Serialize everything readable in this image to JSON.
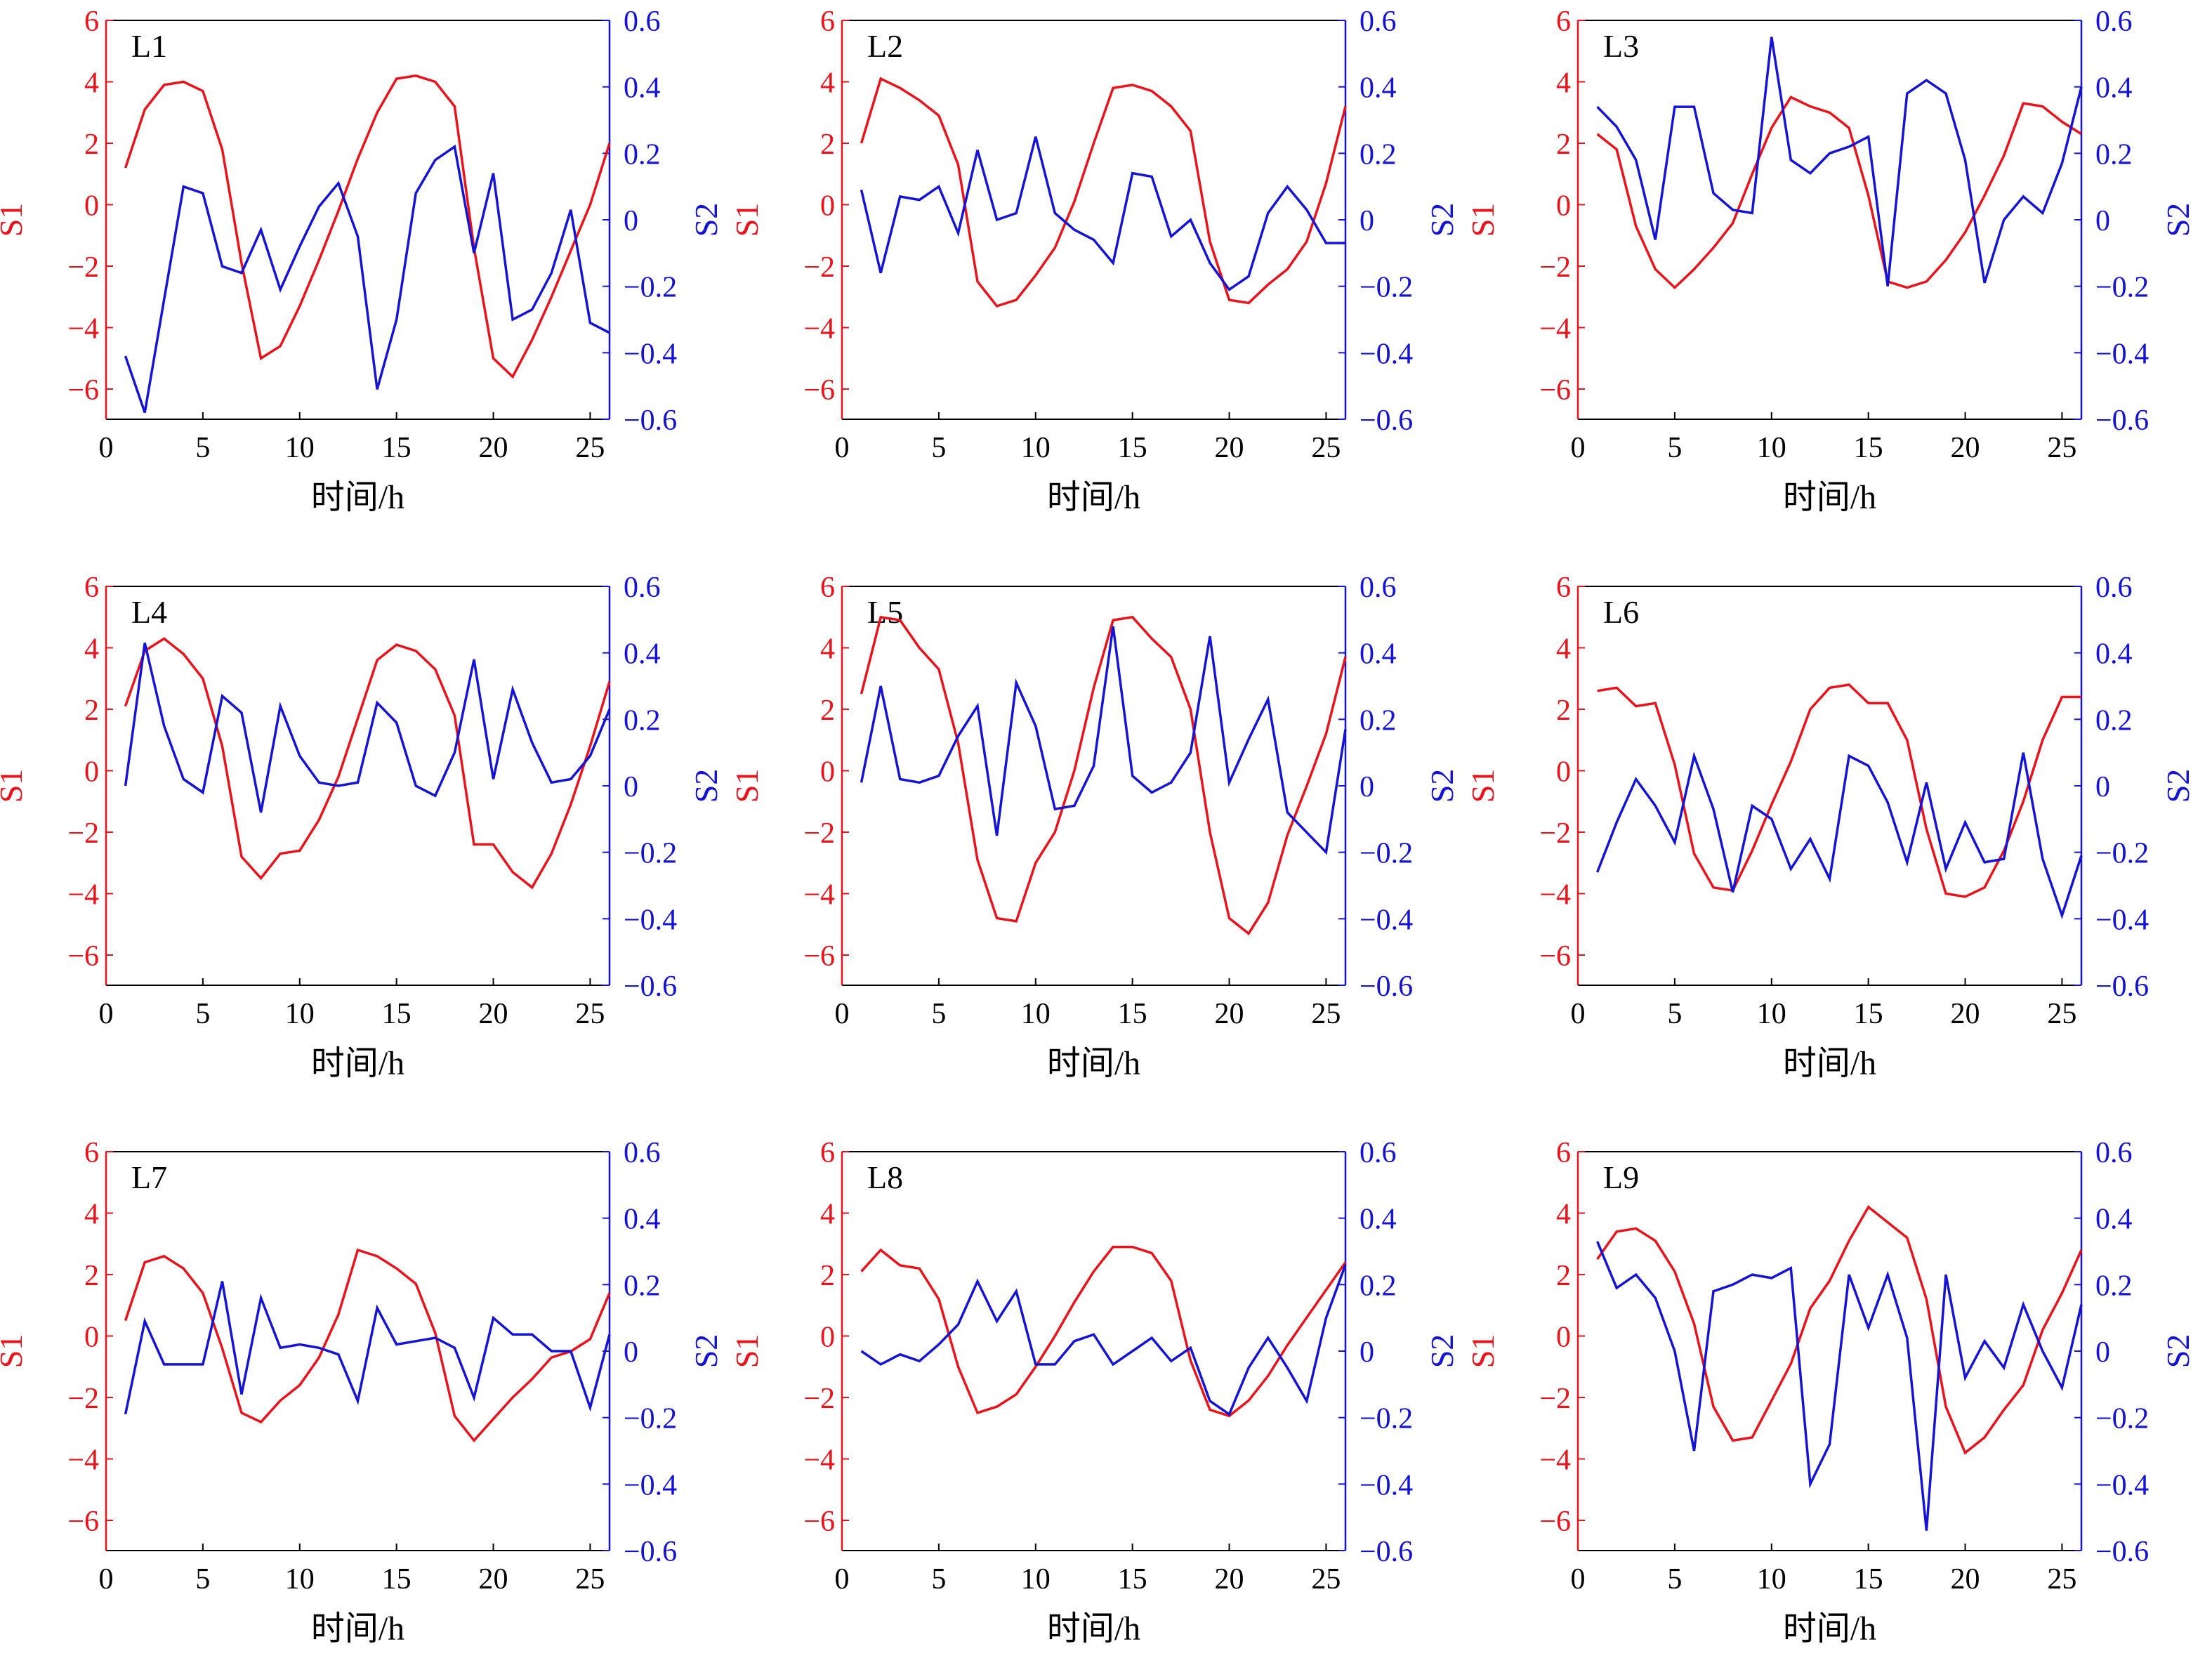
{
  "colors": {
    "s1": "#e8141c",
    "s2": "#1414d2",
    "axis": "#000000"
  },
  "chart_data": [
    {
      "type": "line",
      "title": "L1",
      "xlabel": "时间/h",
      "ylabel": "S1",
      "y2label": "S2",
      "xlim": [
        0,
        26
      ],
      "ylim": [
        -7,
        6
      ],
      "y2lim": [
        -0.6,
        0.6
      ],
      "xticks": [
        "0",
        "5",
        "10",
        "15",
        "20",
        "25"
      ],
      "yticks": [
        "6",
        "4",
        "2",
        "0",
        "−2",
        "−4",
        "−6"
      ],
      "y2ticks": [
        "0.6",
        "0.4",
        "0.2",
        "0",
        "−0.2",
        "−0.4",
        "−0.6"
      ],
      "x": [
        1,
        2,
        3,
        4,
        5,
        6,
        7,
        8,
        9,
        10,
        11,
        12,
        13,
        14,
        15,
        16,
        17,
        18,
        19,
        20,
        21,
        22,
        23,
        24,
        25,
        26
      ],
      "series": [
        {
          "name": "S1",
          "axis": "left",
          "values": [
            1.2,
            3.1,
            3.9,
            4.0,
            3.7,
            1.8,
            -1.9,
            -5.0,
            -4.6,
            -3.3,
            -1.8,
            -0.2,
            1.5,
            3.0,
            4.1,
            4.2,
            4.0,
            3.2,
            -1.4,
            -5.0,
            -5.6,
            -4.4,
            -3.0,
            -1.5,
            0.0,
            2.0
          ]
        },
        {
          "name": "S2",
          "axis": "right",
          "values": [
            -0.41,
            -0.58,
            -0.24,
            0.1,
            0.08,
            -0.14,
            -0.16,
            -0.03,
            -0.21,
            -0.08,
            0.04,
            0.11,
            -0.05,
            -0.51,
            -0.3,
            0.08,
            0.18,
            0.22,
            -0.1,
            0.14,
            -0.3,
            -0.27,
            -0.16,
            0.03,
            -0.31,
            -0.34
          ]
        }
      ]
    },
    {
      "type": "line",
      "title": "L2",
      "xlabel": "时间/h",
      "ylabel": "S1",
      "y2label": "S2",
      "xlim": [
        0,
        26
      ],
      "ylim": [
        -7,
        6
      ],
      "y2lim": [
        -0.6,
        0.6
      ],
      "xticks": [
        "0",
        "5",
        "10",
        "15",
        "20",
        "25"
      ],
      "yticks": [
        "6",
        "4",
        "2",
        "0",
        "−2",
        "−4",
        "−6"
      ],
      "y2ticks": [
        "0.6",
        "0.4",
        "0.2",
        "0",
        "−0.2",
        "−0.4",
        "−0.6"
      ],
      "x": [
        1,
        2,
        3,
        4,
        5,
        6,
        7,
        8,
        9,
        10,
        11,
        12,
        13,
        14,
        15,
        16,
        17,
        18,
        19,
        20,
        21,
        22,
        23,
        24,
        25,
        26
      ],
      "series": [
        {
          "name": "S1",
          "axis": "left",
          "values": [
            2.0,
            4.1,
            3.8,
            3.4,
            2.9,
            1.3,
            -2.5,
            -3.3,
            -3.1,
            -2.3,
            -1.4,
            0.1,
            2.0,
            3.8,
            3.9,
            3.7,
            3.2,
            2.4,
            -1.2,
            -3.1,
            -3.2,
            -2.6,
            -2.1,
            -1.2,
            0.7,
            3.2
          ]
        },
        {
          "name": "S2",
          "axis": "right",
          "values": [
            0.09,
            -0.16,
            0.07,
            0.06,
            0.1,
            -0.04,
            0.21,
            0.0,
            0.02,
            0.25,
            0.02,
            -0.03,
            -0.06,
            -0.13,
            0.14,
            0.13,
            -0.05,
            0.0,
            -0.13,
            -0.21,
            -0.17,
            0.02,
            0.1,
            0.03,
            -0.07,
            -0.07
          ]
        }
      ]
    },
    {
      "type": "line",
      "title": "L3",
      "xlabel": "时间/h",
      "ylabel": "S1",
      "y2label": "S2",
      "xlim": [
        0,
        26
      ],
      "ylim": [
        -7,
        6
      ],
      "y2lim": [
        -0.6,
        0.6
      ],
      "xticks": [
        "0",
        "5",
        "10",
        "15",
        "20",
        "25"
      ],
      "yticks": [
        "6",
        "4",
        "2",
        "0",
        "−2",
        "−4",
        "−6"
      ],
      "y2ticks": [
        "0.6",
        "0.4",
        "0.2",
        "0",
        "−0.2",
        "−0.4",
        "−0.6"
      ],
      "x": [
        1,
        2,
        3,
        4,
        5,
        6,
        7,
        8,
        9,
        10,
        11,
        12,
        13,
        14,
        15,
        16,
        17,
        18,
        19,
        20,
        21,
        22,
        23,
        24,
        25,
        26
      ],
      "series": [
        {
          "name": "S1",
          "axis": "left",
          "values": [
            2.3,
            1.8,
            -0.7,
            -2.1,
            -2.7,
            -2.1,
            -1.4,
            -0.6,
            1.0,
            2.5,
            3.5,
            3.2,
            3.0,
            2.5,
            0.3,
            -2.5,
            -2.7,
            -2.5,
            -1.8,
            -0.9,
            0.3,
            1.6,
            3.3,
            3.2,
            2.7,
            2.3
          ]
        },
        {
          "name": "S2",
          "axis": "right",
          "values": [
            0.34,
            0.28,
            0.18,
            -0.06,
            0.34,
            0.34,
            0.08,
            0.03,
            0.02,
            0.55,
            0.18,
            0.14,
            0.2,
            0.22,
            0.25,
            -0.2,
            0.38,
            0.42,
            0.38,
            0.18,
            -0.19,
            0.0,
            0.07,
            0.02,
            0.17,
            0.4
          ]
        }
      ]
    },
    {
      "type": "line",
      "title": "L4",
      "xlabel": "时间/h",
      "ylabel": "S1",
      "y2label": "S2",
      "xlim": [
        0,
        26
      ],
      "ylim": [
        -7,
        6
      ],
      "y2lim": [
        -0.6,
        0.6
      ],
      "xticks": [
        "0",
        "5",
        "10",
        "15",
        "20",
        "25"
      ],
      "yticks": [
        "6",
        "4",
        "2",
        "0",
        "−2",
        "−4",
        "−6"
      ],
      "y2ticks": [
        "0.6",
        "0.4",
        "0.2",
        "0",
        "−0.2",
        "−0.4",
        "−0.6"
      ],
      "x": [
        1,
        2,
        3,
        4,
        5,
        6,
        7,
        8,
        9,
        10,
        11,
        12,
        13,
        14,
        15,
        16,
        17,
        18,
        19,
        20,
        21,
        22,
        23,
        24,
        25,
        26
      ],
      "series": [
        {
          "name": "S1",
          "axis": "left",
          "values": [
            2.1,
            3.9,
            4.3,
            3.8,
            3.0,
            0.8,
            -2.8,
            -3.5,
            -2.7,
            -2.6,
            -1.6,
            -0.2,
            1.7,
            3.6,
            4.1,
            3.9,
            3.3,
            1.8,
            -2.4,
            -2.4,
            -3.3,
            -3.8,
            -2.7,
            -1.1,
            0.8,
            2.9
          ]
        },
        {
          "name": "S2",
          "axis": "right",
          "values": [
            0.0,
            0.43,
            0.18,
            0.02,
            -0.02,
            0.27,
            0.22,
            -0.08,
            0.24,
            0.09,
            0.01,
            0.0,
            0.01,
            0.25,
            0.19,
            0.0,
            -0.03,
            0.1,
            0.38,
            0.02,
            0.29,
            0.13,
            0.01,
            0.02,
            0.09,
            0.23
          ]
        }
      ]
    },
    {
      "type": "line",
      "title": "L5",
      "xlabel": "时间/h",
      "ylabel": "S1",
      "y2label": "S2",
      "xlim": [
        0,
        26
      ],
      "ylim": [
        -7,
        6
      ],
      "y2lim": [
        -0.6,
        0.6
      ],
      "xticks": [
        "0",
        "5",
        "10",
        "15",
        "20",
        "25"
      ],
      "yticks": [
        "6",
        "4",
        "2",
        "0",
        "−2",
        "−4",
        "−6"
      ],
      "y2ticks": [
        "0.6",
        "0.4",
        "0.2",
        "0",
        "−0.2",
        "−0.4",
        "−0.6"
      ],
      "x": [
        1,
        2,
        3,
        4,
        5,
        6,
        7,
        8,
        9,
        10,
        11,
        12,
        13,
        14,
        15,
        16,
        17,
        18,
        19,
        20,
        21,
        22,
        23,
        24,
        25,
        26
      ],
      "series": [
        {
          "name": "S1",
          "axis": "left",
          "values": [
            2.5,
            5.0,
            4.9,
            4.0,
            3.3,
            0.9,
            -2.9,
            -4.8,
            -4.9,
            -3.0,
            -2.0,
            0.0,
            2.7,
            4.9,
            5.0,
            4.3,
            3.7,
            2.0,
            -2.0,
            -4.8,
            -5.3,
            -4.3,
            -2.1,
            -0.5,
            1.2,
            3.7
          ]
        },
        {
          "name": "S2",
          "axis": "right",
          "values": [
            0.01,
            0.3,
            0.02,
            0.01,
            0.03,
            0.15,
            0.24,
            -0.15,
            0.31,
            0.18,
            -0.07,
            -0.06,
            0.06,
            0.48,
            0.03,
            -0.02,
            0.01,
            0.1,
            0.45,
            0.01,
            0.14,
            0.26,
            -0.08,
            -0.14,
            -0.2,
            0.17
          ]
        }
      ]
    },
    {
      "type": "line",
      "title": "L6",
      "xlabel": "时间/h",
      "ylabel": "S1",
      "y2label": "S2",
      "xlim": [
        0,
        26
      ],
      "ylim": [
        -7,
        6
      ],
      "y2lim": [
        -0.6,
        0.6
      ],
      "xticks": [
        "0",
        "5",
        "10",
        "15",
        "20",
        "25"
      ],
      "yticks": [
        "6",
        "4",
        "2",
        "0",
        "−2",
        "−4",
        "−6"
      ],
      "y2ticks": [
        "0.6",
        "0.4",
        "0.2",
        "0",
        "−0.2",
        "−0.4",
        "−0.6"
      ],
      "x": [
        1,
        2,
        3,
        4,
        5,
        6,
        7,
        8,
        9,
        10,
        11,
        12,
        13,
        14,
        15,
        16,
        17,
        18,
        19,
        20,
        21,
        22,
        23,
        24,
        25,
        26
      ],
      "series": [
        {
          "name": "S1",
          "axis": "left",
          "values": [
            2.6,
            2.7,
            2.1,
            2.2,
            0.2,
            -2.7,
            -3.8,
            -3.9,
            -2.6,
            -1.1,
            0.3,
            2.0,
            2.7,
            2.8,
            2.2,
            2.2,
            1.0,
            -1.9,
            -4.0,
            -4.1,
            -3.8,
            -2.6,
            -1.0,
            1.0,
            2.4,
            2.4
          ]
        },
        {
          "name": "S2",
          "axis": "right",
          "values": [
            -0.26,
            -0.11,
            0.02,
            -0.06,
            -0.17,
            0.09,
            -0.07,
            -0.32,
            -0.06,
            -0.1,
            -0.25,
            -0.16,
            -0.28,
            0.09,
            0.06,
            -0.05,
            -0.23,
            0.01,
            -0.25,
            -0.11,
            -0.23,
            -0.22,
            0.1,
            -0.22,
            -0.39,
            -0.21
          ]
        }
      ]
    },
    {
      "type": "line",
      "title": "L7",
      "xlabel": "时间/h",
      "ylabel": "S1",
      "y2label": "S2",
      "xlim": [
        0,
        26
      ],
      "ylim": [
        -7,
        6
      ],
      "y2lim": [
        -0.6,
        0.6
      ],
      "xticks": [
        "0",
        "5",
        "10",
        "15",
        "20",
        "25"
      ],
      "yticks": [
        "6",
        "4",
        "2",
        "0",
        "−2",
        "−4",
        "−6"
      ],
      "y2ticks": [
        "0.6",
        "0.4",
        "0.2",
        "0",
        "−0.2",
        "−0.4",
        "−0.6"
      ],
      "x": [
        1,
        2,
        3,
        4,
        5,
        6,
        7,
        8,
        9,
        10,
        11,
        12,
        13,
        14,
        15,
        16,
        17,
        18,
        19,
        20,
        21,
        22,
        23,
        24,
        25,
        26
      ],
      "series": [
        {
          "name": "S1",
          "axis": "left",
          "values": [
            0.5,
            2.4,
            2.6,
            2.2,
            1.4,
            -0.4,
            -2.5,
            -2.8,
            -2.1,
            -1.6,
            -0.7,
            0.7,
            2.8,
            2.6,
            2.2,
            1.7,
            0.1,
            -2.6,
            -3.4,
            -2.7,
            -2.0,
            -1.4,
            -0.7,
            -0.5,
            -0.1,
            1.4
          ]
        },
        {
          "name": "S2",
          "axis": "right",
          "values": [
            -0.19,
            0.09,
            -0.04,
            -0.04,
            -0.04,
            0.21,
            -0.13,
            0.16,
            0.01,
            0.02,
            0.01,
            -0.01,
            -0.15,
            0.13,
            0.02,
            0.03,
            0.04,
            0.01,
            -0.14,
            0.1,
            0.05,
            0.05,
            0.0,
            0.0,
            -0.17,
            0.05
          ]
        }
      ]
    },
    {
      "type": "line",
      "title": "L8",
      "xlabel": "时间/h",
      "ylabel": "S1",
      "y2label": "S2",
      "xlim": [
        0,
        26
      ],
      "ylim": [
        -7,
        6
      ],
      "y2lim": [
        -0.6,
        0.6
      ],
      "xticks": [
        "0",
        "5",
        "10",
        "15",
        "20",
        "25"
      ],
      "yticks": [
        "6",
        "4",
        "2",
        "0",
        "−2",
        "−4",
        "−6"
      ],
      "y2ticks": [
        "0.6",
        "0.4",
        "0.2",
        "0",
        "−0.2",
        "−0.4",
        "−0.6"
      ],
      "x": [
        1,
        2,
        3,
        4,
        5,
        6,
        7,
        8,
        9,
        10,
        11,
        12,
        13,
        14,
        15,
        16,
        17,
        18,
        19,
        20,
        21,
        22,
        23,
        24,
        25,
        26
      ],
      "series": [
        {
          "name": "S1",
          "axis": "left",
          "values": [
            2.1,
            2.8,
            2.3,
            2.2,
            1.2,
            -1.0,
            -2.5,
            -2.3,
            -1.9,
            -1.0,
            0.0,
            1.1,
            2.1,
            2.9,
            2.9,
            2.7,
            1.8,
            -0.8,
            -2.4,
            -2.6,
            -2.1,
            -1.3,
            -0.3,
            0.6,
            1.5,
            2.4
          ]
        },
        {
          "name": "S2",
          "axis": "right",
          "values": [
            0.0,
            -0.04,
            -0.01,
            -0.03,
            0.02,
            0.08,
            0.21,
            0.09,
            0.18,
            -0.04,
            -0.04,
            0.03,
            0.05,
            -0.04,
            0.0,
            0.04,
            -0.03,
            0.01,
            -0.15,
            -0.19,
            -0.05,
            0.04,
            -0.05,
            -0.15,
            0.1,
            0.26
          ]
        }
      ]
    },
    {
      "type": "line",
      "title": "L9",
      "xlabel": "时间/h",
      "ylabel": "S1",
      "y2label": "S2",
      "xlim": [
        0,
        26
      ],
      "ylim": [
        -7,
        6
      ],
      "y2lim": [
        -0.6,
        0.6
      ],
      "xticks": [
        "0",
        "5",
        "10",
        "15",
        "20",
        "25"
      ],
      "yticks": [
        "6",
        "4",
        "2",
        "0",
        "−2",
        "−4",
        "−6"
      ],
      "y2ticks": [
        "0.6",
        "0.4",
        "0.2",
        "0",
        "−0.2",
        "−0.4",
        "−0.6"
      ],
      "x": [
        1,
        2,
        3,
        4,
        5,
        6,
        7,
        8,
        9,
        10,
        11,
        12,
        13,
        14,
        15,
        16,
        17,
        18,
        19,
        20,
        21,
        22,
        23,
        24,
        25,
        26
      ],
      "series": [
        {
          "name": "S1",
          "axis": "left",
          "values": [
            2.5,
            3.4,
            3.5,
            3.1,
            2.1,
            0.4,
            -2.3,
            -3.4,
            -3.3,
            -2.1,
            -0.9,
            0.9,
            1.8,
            3.1,
            4.2,
            3.7,
            3.2,
            1.2,
            -2.3,
            -3.8,
            -3.3,
            -2.4,
            -1.6,
            0.2,
            1.4,
            2.8
          ]
        },
        {
          "name": "S2",
          "axis": "right",
          "values": [
            0.33,
            0.19,
            0.23,
            0.16,
            0.0,
            -0.3,
            0.18,
            0.2,
            0.23,
            0.22,
            0.25,
            -0.4,
            -0.28,
            0.23,
            0.07,
            0.23,
            0.04,
            -0.54,
            0.23,
            -0.08,
            0.03,
            -0.05,
            0.14,
            0.0,
            -0.11,
            0.14
          ]
        }
      ]
    }
  ]
}
